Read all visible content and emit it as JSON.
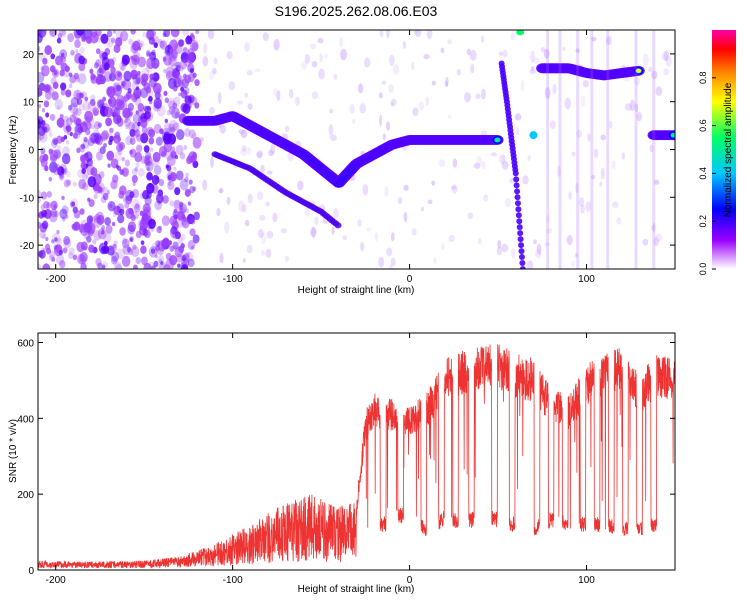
{
  "title": "S196.2025.262.08.06.E03",
  "chart_data": [
    {
      "type": "heatmap",
      "xlabel": "Height of straight line (km)",
      "ylabel": "Frequency (Hz)",
      "xlim": [
        -210,
        150
      ],
      "ylim": [
        -25,
        25
      ],
      "x_ticks": [
        -200,
        -100,
        0,
        100
      ],
      "y_ticks": [
        -20,
        -10,
        0,
        10,
        20
      ],
      "colorbar": {
        "label": "Normalized spectral amplitude",
        "range": [
          0,
          1
        ],
        "ticks": [
          "0.0",
          "0.2",
          "0.4",
          "0.6",
          "0.8"
        ],
        "colors": [
          "#ffffff",
          "#9b00ff",
          "#0000ff",
          "#00c8ff",
          "#00ff66",
          "#ffff00",
          "#ff8800",
          "#ff0000",
          "#ff00aa"
        ]
      },
      "ridge": {
        "segments": [
          {
            "x": [
              -125,
              -110,
              -100,
              -90,
              -80,
              -70,
              -60,
              -50,
              -40
            ],
            "y": [
              6,
              6,
              7,
              5,
              3,
              1,
              -1,
              -4,
              -7
            ]
          },
          {
            "x": [
              -40,
              -30,
              -20,
              -10,
              0,
              20,
              40,
              50
            ],
            "y": [
              -7,
              -3,
              -1,
              1,
              2,
              2,
              2,
              2
            ]
          },
          {
            "x": [
              75,
              90,
              100,
              110,
              120,
              130
            ],
            "y": [
              17,
              17,
              16,
              15.5,
              16,
              16.5
            ]
          },
          {
            "x": [
              138,
              150
            ],
            "y": [
              3,
              3
            ]
          }
        ],
        "secondary": {
          "x": [
            -110,
            -90,
            -70,
            -50,
            -40
          ],
          "y": [
            -1,
            -4,
            -9,
            -13,
            -16
          ]
        },
        "steep": {
          "x": [
            52,
            55,
            60,
            62,
            64
          ],
          "y": [
            18,
            10,
            -5,
            -15,
            -25
          ]
        }
      }
    },
    {
      "type": "line",
      "xlabel": "Height of straight line (km)",
      "ylabel": "SNR (10 * v/v)",
      "xlim": [
        -210,
        150
      ],
      "ylim": [
        0,
        625
      ],
      "x_ticks": [
        -200,
        -100,
        0,
        100
      ],
      "y_ticks": [
        0,
        200,
        400,
        600
      ],
      "line_color": "#ee3333",
      "envelope": {
        "x": [
          -210,
          -180,
          -150,
          -130,
          -110,
          -90,
          -70,
          -55,
          -40,
          -30,
          -25,
          -20,
          -10,
          0,
          10,
          20,
          30,
          40,
          50,
          60,
          70,
          80,
          90,
          100,
          110,
          120,
          130,
          140,
          150
        ],
        "upper": [
          25,
          22,
          25,
          35,
          70,
          120,
          180,
          200,
          170,
          180,
          420,
          470,
          450,
          430,
          470,
          560,
          580,
          590,
          600,
          570,
          560,
          480,
          460,
          550,
          570,
          590,
          520,
          570,
          560
        ],
        "lower": [
          5,
          5,
          5,
          8,
          10,
          15,
          20,
          20,
          20,
          25,
          60,
          90,
          110,
          130,
          80,
          120,
          100,
          120,
          110,
          100,
          90,
          110,
          100,
          100,
          100,
          90,
          90,
          100,
          110
        ]
      },
      "drops": [
        -15,
        -5,
        8,
        18,
        26,
        35,
        48,
        58,
        72,
        80,
        88,
        98,
        106,
        114,
        122,
        130,
        138
      ]
    }
  ]
}
